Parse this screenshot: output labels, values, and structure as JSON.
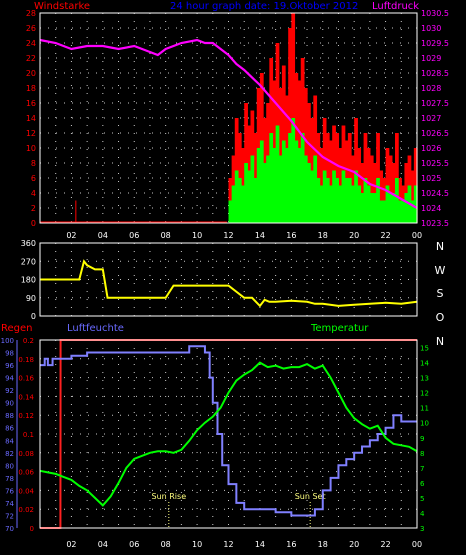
{
  "colors": {
    "background": "#000000",
    "axis_frame": "#ffffff",
    "grid": "#c8c8c8",
    "wind_avg": "#00ff00",
    "wind_gust": "#ff0000",
    "pressure": "#ff00ff",
    "wind_dir": "#ffff00",
    "rain": "#ff2020",
    "humidity": "#8080ff",
    "temperature": "#00ff00",
    "rain_axis": "#ff0000",
    "humidity_axis": "#6a6aff",
    "temp_axis": "#00ff00",
    "title": "#0000ff",
    "sun_marker": "#ffff80"
  },
  "chart_data": [
    {
      "type": "bar",
      "title": "24 hour graph date: 19.Oktober 2012",
      "ylabel_left": "Windstarke",
      "ylabel_right": "Luftdruck",
      "x_ticks": [
        "02",
        "04",
        "06",
        "08",
        "10",
        "12",
        "14",
        "16",
        "18",
        "20",
        "22",
        "00"
      ],
      "y_left_ticks": [
        "0",
        "2",
        "4",
        "6",
        "8",
        "10",
        "12",
        "14",
        "16",
        "18",
        "20",
        "22",
        "24",
        "26",
        "28"
      ],
      "y_right_ticks": [
        "1023.5",
        "1024",
        "1024.5",
        "1025",
        "1025.5",
        "1026",
        "1026.5",
        "1027",
        "1027.5",
        "1028",
        "1028.5",
        "1029",
        "1029.5",
        "1030",
        "1030.5"
      ],
      "ylim_left": [
        0,
        28
      ],
      "ylim_right": [
        1023.5,
        1030.5
      ],
      "xlim_hours": [
        0,
        24
      ],
      "series": [
        {
          "name": "Luftdruck",
          "type": "line",
          "x": [
            0,
            1,
            2,
            3,
            4,
            5,
            6,
            7,
            7.5,
            8,
            9,
            10,
            10.5,
            11,
            11.5,
            12,
            12.5,
            13,
            14,
            15,
            16,
            17,
            18,
            19,
            20,
            21,
            22,
            23,
            24
          ],
          "values": [
            1029.6,
            1029.5,
            1029.3,
            1029.4,
            1029.4,
            1029.3,
            1029.4,
            1029.2,
            1029.1,
            1029.3,
            1029.5,
            1029.6,
            1029.5,
            1029.5,
            1029.3,
            1029.1,
            1028.8,
            1028.6,
            1028.1,
            1027.5,
            1026.9,
            1026.2,
            1025.7,
            1025.4,
            1025.2,
            1024.8,
            1024.6,
            1024.3,
            1024.0
          ]
        },
        {
          "name": "Gust",
          "type": "bar",
          "x": [
            2.25,
            12.0,
            12.2,
            12.4,
            12.6,
            12.8,
            13.0,
            13.2,
            13.4,
            13.6,
            13.8,
            14.0,
            14.2,
            14.4,
            14.6,
            14.8,
            15.0,
            15.2,
            15.4,
            15.6,
            15.8,
            16.0,
            16.2,
            16.4,
            16.6,
            16.8,
            17.0,
            17.2,
            17.4,
            17.6,
            17.8,
            18.0,
            18.2,
            18.4,
            18.6,
            18.8,
            19.0,
            19.2,
            19.4,
            19.6,
            19.8,
            20.0,
            20.2,
            20.4,
            20.6,
            20.8,
            21.0,
            21.2,
            21.4,
            21.6,
            21.8,
            22.0,
            22.2,
            22.4,
            22.6,
            22.8,
            23.0,
            23.2,
            23.4,
            23.6,
            23.8
          ],
          "values": [
            3,
            6,
            9,
            14,
            12,
            10,
            16,
            13,
            15,
            12,
            18,
            20,
            14,
            16,
            22,
            19,
            24,
            18,
            21,
            17,
            26,
            28,
            20,
            19,
            22,
            18,
            16,
            14,
            17,
            12,
            10,
            14,
            12,
            11,
            13,
            12,
            10,
            13,
            11,
            12,
            9,
            14,
            10,
            8,
            12,
            10,
            9,
            8,
            12,
            7,
            6,
            10,
            9,
            8,
            12,
            6,
            5,
            8,
            9,
            7,
            10
          ]
        },
        {
          "name": "Average",
          "type": "bar",
          "x": [
            12.0,
            12.2,
            12.4,
            12.6,
            12.8,
            13.0,
            13.2,
            13.4,
            13.6,
            13.8,
            14.0,
            14.2,
            14.4,
            14.6,
            14.8,
            15.0,
            15.2,
            15.4,
            15.6,
            15.8,
            16.0,
            16.2,
            16.4,
            16.6,
            16.8,
            17.0,
            17.2,
            17.4,
            17.6,
            17.8,
            18.0,
            18.2,
            18.4,
            18.6,
            18.8,
            19.0,
            19.2,
            19.4,
            19.6,
            19.8,
            20.0,
            20.2,
            20.4,
            20.6,
            20.8,
            21.0,
            21.2,
            21.4,
            21.6,
            21.8,
            22.0,
            22.2,
            22.4,
            22.6,
            22.8,
            23.0,
            23.2,
            23.4,
            23.6,
            23.8
          ],
          "values": [
            3,
            5,
            7,
            6,
            5,
            8,
            7,
            9,
            6,
            10,
            11,
            8,
            9,
            12,
            10,
            13,
            9,
            11,
            10,
            12,
            14,
            11,
            10,
            12,
            9,
            8,
            7,
            9,
            6,
            5,
            7,
            6,
            5,
            7,
            6,
            5,
            7,
            6,
            6,
            5,
            7,
            5,
            4,
            6,
            5,
            4,
            4,
            6,
            3,
            3,
            5,
            4,
            4,
            6,
            3,
            3,
            4,
            5,
            3,
            5
          ]
        }
      ]
    },
    {
      "type": "line",
      "title": "",
      "y_ticks": [
        "0",
        "90",
        "180",
        "270",
        "360"
      ],
      "ylim": [
        0,
        360
      ],
      "right_labels": [
        "N",
        "W",
        "S",
        "O",
        "N"
      ],
      "xlim_hours": [
        0,
        24
      ],
      "series": [
        {
          "name": "Wind direction",
          "x": [
            0,
            2.5,
            2.8,
            3.0,
            3.5,
            4.0,
            4.3,
            5,
            6,
            7,
            8,
            8.5,
            9,
            10,
            11,
            11.5,
            12,
            13,
            13.5,
            14,
            14.3,
            14.6,
            15,
            16,
            17,
            17.5,
            18,
            19,
            20,
            21,
            22,
            23,
            24
          ],
          "values": [
            180,
            180,
            270,
            250,
            230,
            230,
            90,
            90,
            90,
            90,
            90,
            150,
            150,
            150,
            150,
            150,
            150,
            90,
            90,
            50,
            80,
            70,
            70,
            75,
            70,
            60,
            60,
            50,
            55,
            60,
            65,
            60,
            70
          ]
        }
      ]
    },
    {
      "type": "line",
      "title": "",
      "ylabel_rain": "Regen",
      "ylabel_humidity": "Luftfeuchte",
      "ylabel_temp": "Temperatur",
      "x_ticks": [
        "02",
        "04",
        "06",
        "08",
        "10",
        "12",
        "14",
        "16",
        "18",
        "20",
        "22",
        "00"
      ],
      "humidity_ticks": [
        "70",
        "72",
        "74",
        "76",
        "78",
        "80",
        "82",
        "84",
        "86",
        "88",
        "90",
        "92",
        "94",
        "96",
        "98",
        "100"
      ],
      "rain_ticks": [
        "0",
        "0.02",
        "0.04",
        "0.06",
        "0.08",
        "0.1",
        "0.12",
        "0.14",
        "0.16",
        "0.18",
        "0.2"
      ],
      "temp_ticks": [
        "3",
        "4",
        "5",
        "6",
        "7",
        "8",
        "9",
        "10",
        "11",
        "12",
        "13",
        "14",
        "15"
      ],
      "ylim_humidity": [
        70,
        100
      ],
      "ylim_rain": [
        0,
        0.2
      ],
      "ylim_temp": [
        3,
        15.5
      ],
      "xlim_hours": [
        0,
        24
      ],
      "annotations": [
        {
          "label": "Sun Rise",
          "x": 8.2
        },
        {
          "label": "Sun Set",
          "x": 17.2
        }
      ],
      "series": [
        {
          "name": "Luftfeuchte",
          "x": [
            0,
            0.3,
            0.5,
            0.8,
            1.0,
            2.0,
            3.0,
            4.0,
            5.0,
            6.0,
            7.0,
            8.0,
            9.0,
            9.5,
            10.0,
            10.5,
            10.8,
            11.0,
            11.3,
            11.6,
            12.0,
            12.5,
            13.0,
            14.0,
            15.0,
            16.0,
            17.0,
            17.5,
            18.0,
            18.5,
            19.0,
            19.5,
            20.0,
            20.5,
            21.0,
            21.5,
            22.0,
            22.5,
            23.0,
            24.0
          ],
          "values": [
            96,
            97,
            96,
            97,
            97,
            97.5,
            98,
            98,
            98,
            98,
            98,
            98,
            98,
            99,
            99,
            98,
            94,
            90,
            85,
            80,
            77,
            74,
            73,
            73,
            72.5,
            72,
            72,
            73,
            76,
            78,
            80,
            81,
            82,
            83,
            84,
            85,
            86,
            88,
            87,
            87
          ]
        },
        {
          "name": "Regen",
          "x": [
            0,
            1.3,
            1.31,
            24
          ],
          "values": [
            0,
            0,
            0.2,
            0.2
          ]
        },
        {
          "name": "Temperatur",
          "x": [
            0,
            0.5,
            1.0,
            1.5,
            2.0,
            2.5,
            3.0,
            3.5,
            4.0,
            4.5,
            5.0,
            5.5,
            6.0,
            6.5,
            7.0,
            7.5,
            8.0,
            8.5,
            9.0,
            9.5,
            10.0,
            10.5,
            11.0,
            11.5,
            12.0,
            12.5,
            13.0,
            13.5,
            14.0,
            14.5,
            15.0,
            15.5,
            16.0,
            16.5,
            17.0,
            17.5,
            18.0,
            18.5,
            19.0,
            19.5,
            20.0,
            20.5,
            21.0,
            21.5,
            22.0,
            22.5,
            23.0,
            23.5,
            24.0
          ],
          "values": [
            6.8,
            6.7,
            6.6,
            6.4,
            6.2,
            5.8,
            5.5,
            5.0,
            4.5,
            5.1,
            6.0,
            7.0,
            7.6,
            7.8,
            8.0,
            8.1,
            8.1,
            8.0,
            8.2,
            8.8,
            9.5,
            10.0,
            10.4,
            11.0,
            12.0,
            12.8,
            13.2,
            13.5,
            14.0,
            13.7,
            13.8,
            13.6,
            13.7,
            13.7,
            13.9,
            13.6,
            13.8,
            13.0,
            12.0,
            11.0,
            10.3,
            9.9,
            9.6,
            9.8,
            9.0,
            8.6,
            8.5,
            8.4,
            8.1
          ]
        }
      ]
    }
  ]
}
